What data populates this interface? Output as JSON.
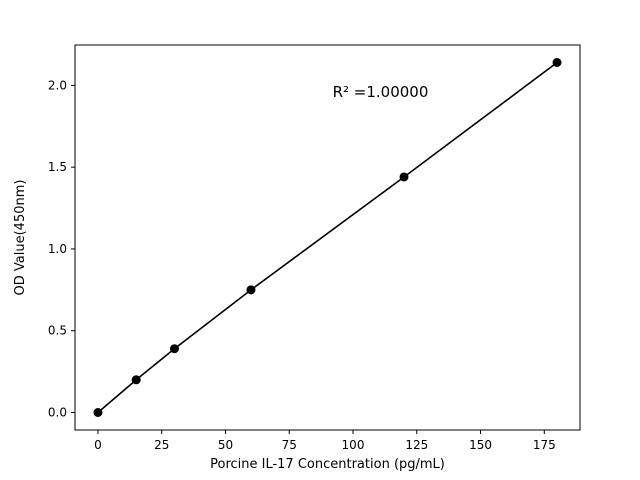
{
  "chart_data": {
    "type": "scatter",
    "title": "",
    "xlabel": "Porcine IL-17 Concentration (pg/mL)",
    "ylabel": "OD Value(450nm)",
    "x": [
      0,
      15,
      30,
      60,
      120,
      180
    ],
    "y": [
      0.0,
      0.2,
      0.39,
      0.75,
      1.44,
      2.14
    ],
    "line_through_points": true,
    "xlim": [
      -9,
      189
    ],
    "ylim": [
      -0.107,
      2.247
    ],
    "xticks": [
      0,
      25,
      50,
      75,
      100,
      125,
      150,
      175
    ],
    "yticks": [
      0.0,
      0.5,
      1.0,
      1.5,
      2.0
    ],
    "grid": false,
    "legend": null,
    "annotation": {
      "text": "R² =1.00000",
      "x": 92,
      "y": 1.93
    },
    "marker_color": "#000000",
    "line_color": "#000000",
    "axis_color": "#000000",
    "text_color": "#000000",
    "background_color": "#ffffff"
  }
}
